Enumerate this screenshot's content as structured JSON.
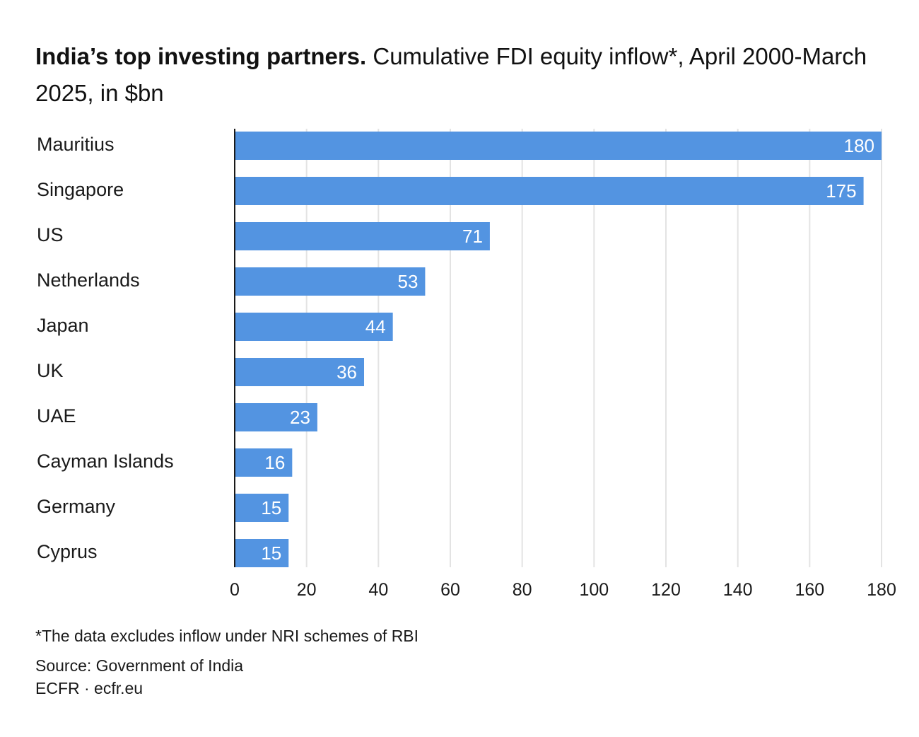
{
  "title": {
    "bold": "India’s top investing partners.",
    "rest": " Cumulative FDI equity inflow*, April 2000-March 2025, in $bn"
  },
  "chart_data": {
    "type": "bar",
    "orientation": "horizontal",
    "categories": [
      "Mauritius",
      "Singapore",
      "US",
      "Netherlands",
      "Japan",
      "UK",
      "UAE",
      "Cayman Islands",
      "Germany",
      "Cyprus"
    ],
    "values": [
      180,
      175,
      71,
      53,
      44,
      36,
      23,
      16,
      15,
      15
    ],
    "xlim": [
      0,
      180
    ],
    "xticks": [
      0,
      20,
      40,
      60,
      80,
      100,
      120,
      140,
      160,
      180
    ],
    "grid": "vertical",
    "bar_color": "#5394E1",
    "data_labels": true
  },
  "footer": {
    "note": "*The data excludes inflow under NRI schemes of RBI",
    "source": "Source: Government of India",
    "credit": "ECFR · ecfr.eu"
  }
}
